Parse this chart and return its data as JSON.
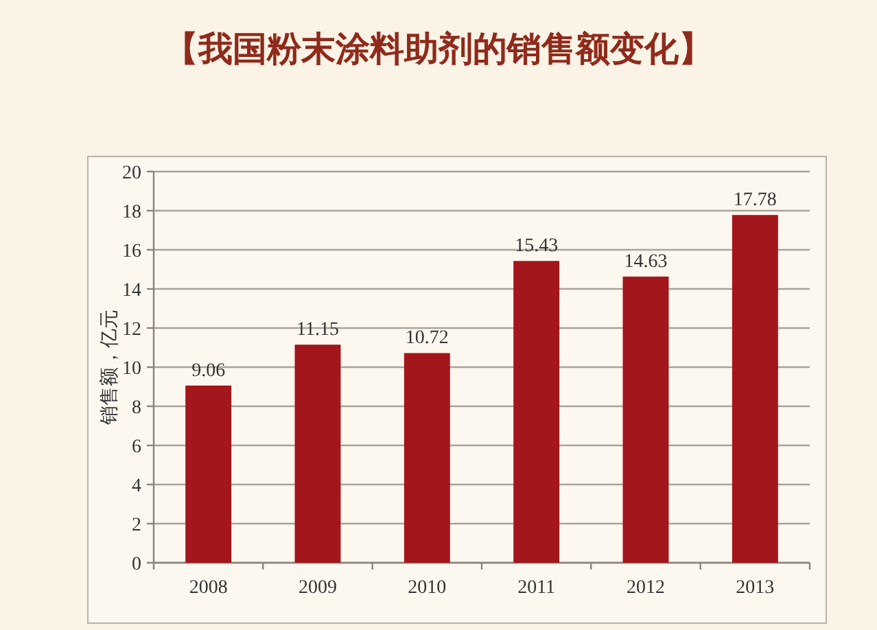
{
  "chart_data": {
    "type": "bar",
    "title": "【我国粉末涂料助剂的销售额变化】",
    "ylabel": "销售额，亿元",
    "categories": [
      "2008",
      "2009",
      "2010",
      "2011",
      "2012",
      "2013"
    ],
    "values": [
      9.06,
      11.15,
      10.72,
      15.43,
      14.63,
      17.78
    ],
    "color": "#a3161b",
    "ylim": [
      0,
      20
    ],
    "yticks": [
      0,
      2,
      4,
      6,
      8,
      10,
      12,
      14,
      16,
      18,
      20
    ],
    "grid": "y",
    "data_labels": true
  }
}
